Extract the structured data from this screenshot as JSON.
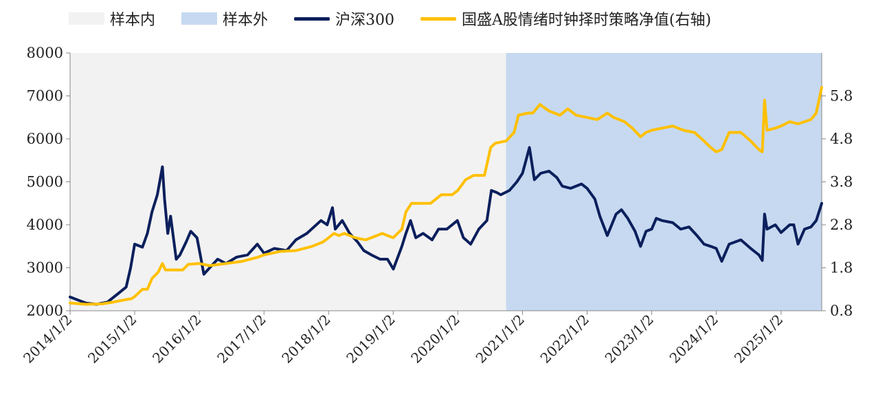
{
  "legend": {
    "in_sample": "样本内",
    "out_sample": "样本外",
    "csi300": "沪深300",
    "strategy": "国盛A股情绪时钟择时策略净值(右轴)"
  },
  "colors": {
    "in_sample_bg": "#F2F2F2",
    "out_sample_bg": "#C6D9F0",
    "csi300": "#0B1F5C",
    "strategy": "#FFC000",
    "axis": "#888888"
  },
  "chart_data": {
    "type": "line",
    "x_tick_labels": [
      "2014/1/2",
      "2015/1/2",
      "2016/1/2",
      "2017/1/2",
      "2018/1/2",
      "2019/1/2",
      "2020/1/2",
      "2021/1/2",
      "2022/1/2",
      "2023/1/2",
      "2024/1/2",
      "2025/1/2"
    ],
    "x_range": [
      "2014/1/2",
      "2025/8/20"
    ],
    "left_axis": {
      "min": 2000,
      "max": 8000,
      "ticks": [
        2000,
        3000,
        4000,
        5000,
        6000,
        7000,
        8000
      ]
    },
    "right_axis": {
      "min": 0.8,
      "max": 6.8,
      "ticks": [
        "0.8",
        "1.8",
        "2.8",
        "3.8",
        "4.8",
        "5.8"
      ]
    },
    "regions": [
      {
        "name": "样本内",
        "start": "2014/1/2",
        "end": "2020/10/1"
      },
      {
        "name": "样本外",
        "start": "2020/10/1",
        "end": "2025/8/20"
      }
    ],
    "series": [
      {
        "name": "沪深300",
        "axis": "left",
        "points": [
          [
            "2014/1/2",
            2320
          ],
          [
            "2014/2/15",
            2250
          ],
          [
            "2014/4/1",
            2180
          ],
          [
            "2014/6/1",
            2150
          ],
          [
            "2014/8/1",
            2200
          ],
          [
            "2014/10/1",
            2400
          ],
          [
            "2014/11/15",
            2550
          ],
          [
            "2014/12/10",
            3000
          ],
          [
            "2015/1/2",
            3550
          ],
          [
            "2015/2/15",
            3480
          ],
          [
            "2015/3/15",
            3800
          ],
          [
            "2015/4/10",
            4300
          ],
          [
            "2015/5/10",
            4700
          ],
          [
            "2015/6/8",
            5350
          ],
          [
            "2015/6/20",
            4600
          ],
          [
            "2015/7/8",
            3800
          ],
          [
            "2015/7/24",
            4200
          ],
          [
            "2015/8/25",
            3200
          ],
          [
            "2015/9/15",
            3300
          ],
          [
            "2015/10/20",
            3600
          ],
          [
            "2015/11/15",
            3850
          ],
          [
            "2015/12/20",
            3700
          ],
          [
            "2016/1/8",
            3300
          ],
          [
            "2016/1/28",
            2850
          ],
          [
            "2016/3/1",
            3000
          ],
          [
            "2016/4/15",
            3200
          ],
          [
            "2016/6/1",
            3100
          ],
          [
            "2016/8/1",
            3250
          ],
          [
            "2016/10/1",
            3300
          ],
          [
            "2016/11/25",
            3550
          ],
          [
            "2017/1/2",
            3340
          ],
          [
            "2017/3/1",
            3450
          ],
          [
            "2017/5/10",
            3400
          ],
          [
            "2017/7/1",
            3650
          ],
          [
            "2017/9/1",
            3800
          ],
          [
            "2017/11/20",
            4100
          ],
          [
            "2017/12/25",
            4000
          ],
          [
            "2018/1/24",
            4400
          ],
          [
            "2018/2/9",
            3900
          ],
          [
            "2018/3/20",
            4100
          ],
          [
            "2018/5/1",
            3800
          ],
          [
            "2018/6/15",
            3600
          ],
          [
            "2018/7/20",
            3400
          ],
          [
            "2018/9/1",
            3300
          ],
          [
            "2018/10/20",
            3200
          ],
          [
            "2018/12/1",
            3200
          ],
          [
            "2019/1/3",
            2970
          ],
          [
            "2019/2/20",
            3500
          ],
          [
            "2019/3/15",
            3800
          ],
          [
            "2019/4/10",
            4100
          ],
          [
            "2019/5/10",
            3700
          ],
          [
            "2019/6/20",
            3800
          ],
          [
            "2019/8/10",
            3650
          ],
          [
            "2019/9/15",
            3900
          ],
          [
            "2019/11/1",
            3900
          ],
          [
            "2019/12/31",
            4100
          ],
          [
            "2020/2/3",
            3700
          ],
          [
            "2020/3/15",
            3550
          ],
          [
            "2020/4/30",
            3900
          ],
          [
            "2020/6/15",
            4100
          ],
          [
            "2020/7/10",
            4800
          ],
          [
            "2020/8/10",
            4750
          ],
          [
            "2020/9/1",
            4700
          ],
          [
            "2020/10/20",
            4800
          ],
          [
            "2020/12/1",
            5000
          ],
          [
            "2021/1/2",
            5200
          ],
          [
            "2021/2/10",
            5800
          ],
          [
            "2021/3/10",
            5050
          ],
          [
            "2021/4/15",
            5200
          ],
          [
            "2021/6/1",
            5250
          ],
          [
            "2021/7/15",
            5100
          ],
          [
            "2021/8/15",
            4900
          ],
          [
            "2021/10/1",
            4850
          ],
          [
            "2021/12/1",
            4950
          ],
          [
            "2022/1/2",
            4850
          ],
          [
            "2022/2/15",
            4600
          ],
          [
            "2022/3/15",
            4200
          ],
          [
            "2022/4/26",
            3750
          ],
          [
            "2022/6/15",
            4250
          ],
          [
            "2022/7/15",
            4350
          ],
          [
            "2022/8/20",
            4150
          ],
          [
            "2022/9/30",
            3850
          ],
          [
            "2022/10/31",
            3500
          ],
          [
            "2022/12/1",
            3850
          ],
          [
            "2023/1/2",
            3900
          ],
          [
            "2023/1/28",
            4150
          ],
          [
            "2023/3/1",
            4100
          ],
          [
            "2023/5/1",
            4050
          ],
          [
            "2023/6/15",
            3900
          ],
          [
            "2023/8/1",
            3950
          ],
          [
            "2023/9/15",
            3750
          ],
          [
            "2023/10/25",
            3550
          ],
          [
            "2023/12/1",
            3500
          ],
          [
            "2024/1/2",
            3450
          ],
          [
            "2024/2/2",
            3150
          ],
          [
            "2024/3/15",
            3550
          ],
          [
            "2024/5/20",
            3650
          ],
          [
            "2024/7/15",
            3450
          ],
          [
            "2024/8/30",
            3300
          ],
          [
            "2024/9/18",
            3170
          ],
          [
            "2024/10/1",
            4250
          ],
          [
            "2024/10/15",
            3900
          ],
          [
            "2024/12/1",
            4000
          ],
          [
            "2025/1/2",
            3820
          ],
          [
            "2025/2/20",
            4000
          ],
          [
            "2025/3/15",
            4000
          ],
          [
            "2025/4/8",
            3550
          ],
          [
            "2025/5/15",
            3900
          ],
          [
            "2025/6/20",
            3950
          ],
          [
            "2025/7/20",
            4100
          ],
          [
            "2025/8/20",
            4500
          ]
        ]
      },
      {
        "name": "国盛A股情绪时钟择时策略净值(右轴)",
        "axis": "right",
        "points": [
          [
            "2014/1/2",
            0.98
          ],
          [
            "2014/4/1",
            0.95
          ],
          [
            "2014/7/1",
            0.96
          ],
          [
            "2014/9/1",
            1.0
          ],
          [
            "2014/11/1",
            1.05
          ],
          [
            "2014/12/15",
            1.08
          ],
          [
            "2015/1/2",
            1.13
          ],
          [
            "2015/2/15",
            1.3
          ],
          [
            "2015/3/15",
            1.3
          ],
          [
            "2015/4/10",
            1.55
          ],
          [
            "2015/5/15",
            1.7
          ],
          [
            "2015/6/8",
            1.9
          ],
          [
            "2015/6/25",
            1.75
          ],
          [
            "2015/8/1",
            1.75
          ],
          [
            "2015/10/1",
            1.75
          ],
          [
            "2015/11/1",
            1.88
          ],
          [
            "2016/1/2",
            1.9
          ],
          [
            "2016/3/1",
            1.85
          ],
          [
            "2016/6/1",
            1.9
          ],
          [
            "2016/9/1",
            1.95
          ],
          [
            "2016/12/1",
            2.05
          ],
          [
            "2017/1/2",
            2.1
          ],
          [
            "2017/4/1",
            2.18
          ],
          [
            "2017/7/1",
            2.2
          ],
          [
            "2017/10/1",
            2.3
          ],
          [
            "2017/12/1",
            2.4
          ],
          [
            "2018/1/2",
            2.5
          ],
          [
            "2018/2/1",
            2.6
          ],
          [
            "2018/3/1",
            2.55
          ],
          [
            "2018/4/1",
            2.6
          ],
          [
            "2018/6/1",
            2.5
          ],
          [
            "2018/8/1",
            2.45
          ],
          [
            "2018/11/1",
            2.6
          ],
          [
            "2018/12/1",
            2.55
          ],
          [
            "2019/1/2",
            2.5
          ],
          [
            "2019/2/20",
            2.7
          ],
          [
            "2019/3/15",
            3.1
          ],
          [
            "2019/4/15",
            3.3
          ],
          [
            "2019/6/1",
            3.3
          ],
          [
            "2019/8/1",
            3.3
          ],
          [
            "2019/10/1",
            3.5
          ],
          [
            "2019/12/1",
            3.5
          ],
          [
            "2020/1/2",
            3.6
          ],
          [
            "2020/2/15",
            3.85
          ],
          [
            "2020/4/1",
            3.95
          ],
          [
            "2020/6/1",
            3.95
          ],
          [
            "2020/7/6",
            4.6
          ],
          [
            "2020/8/1",
            4.7
          ],
          [
            "2020/10/1",
            4.75
          ],
          [
            "2020/11/15",
            4.95
          ],
          [
            "2020/12/10",
            5.35
          ],
          [
            "2021/2/1",
            5.4
          ],
          [
            "2021/3/1",
            5.4
          ],
          [
            "2021/4/10",
            5.6
          ],
          [
            "2021/6/1",
            5.45
          ],
          [
            "2021/8/1",
            5.35
          ],
          [
            "2021/9/15",
            5.5
          ],
          [
            "2021/11/1",
            5.35
          ],
          [
            "2022/1/2",
            5.3
          ],
          [
            "2022/3/1",
            5.25
          ],
          [
            "2022/4/26",
            5.4
          ],
          [
            "2022/6/1",
            5.3
          ],
          [
            "2022/8/1",
            5.2
          ],
          [
            "2022/9/15",
            5.05
          ],
          [
            "2022/10/31",
            4.85
          ],
          [
            "2022/12/1",
            4.95
          ],
          [
            "2023/1/2",
            5.0
          ],
          [
            "2023/3/1",
            5.05
          ],
          [
            "2023/5/1",
            5.1
          ],
          [
            "2023/7/1",
            5.0
          ],
          [
            "2023/9/1",
            4.95
          ],
          [
            "2023/10/25",
            4.75
          ],
          [
            "2023/12/1",
            4.6
          ],
          [
            "2024/1/2",
            4.5
          ],
          [
            "2024/2/2",
            4.55
          ],
          [
            "2024/3/15",
            4.95
          ],
          [
            "2024/5/20",
            4.95
          ],
          [
            "2024/7/15",
            4.75
          ],
          [
            "2024/8/30",
            4.55
          ],
          [
            "2024/9/18",
            4.5
          ],
          [
            "2024/10/1",
            5.7
          ],
          [
            "2024/10/15",
            5.0
          ],
          [
            "2024/12/1",
            5.05
          ],
          [
            "2025/1/2",
            5.1
          ],
          [
            "2025/2/20",
            5.2
          ],
          [
            "2025/4/8",
            5.15
          ],
          [
            "2025/5/15",
            5.2
          ],
          [
            "2025/6/20",
            5.25
          ],
          [
            "2025/7/20",
            5.4
          ],
          [
            "2025/8/20",
            6.0
          ]
        ]
      }
    ]
  }
}
